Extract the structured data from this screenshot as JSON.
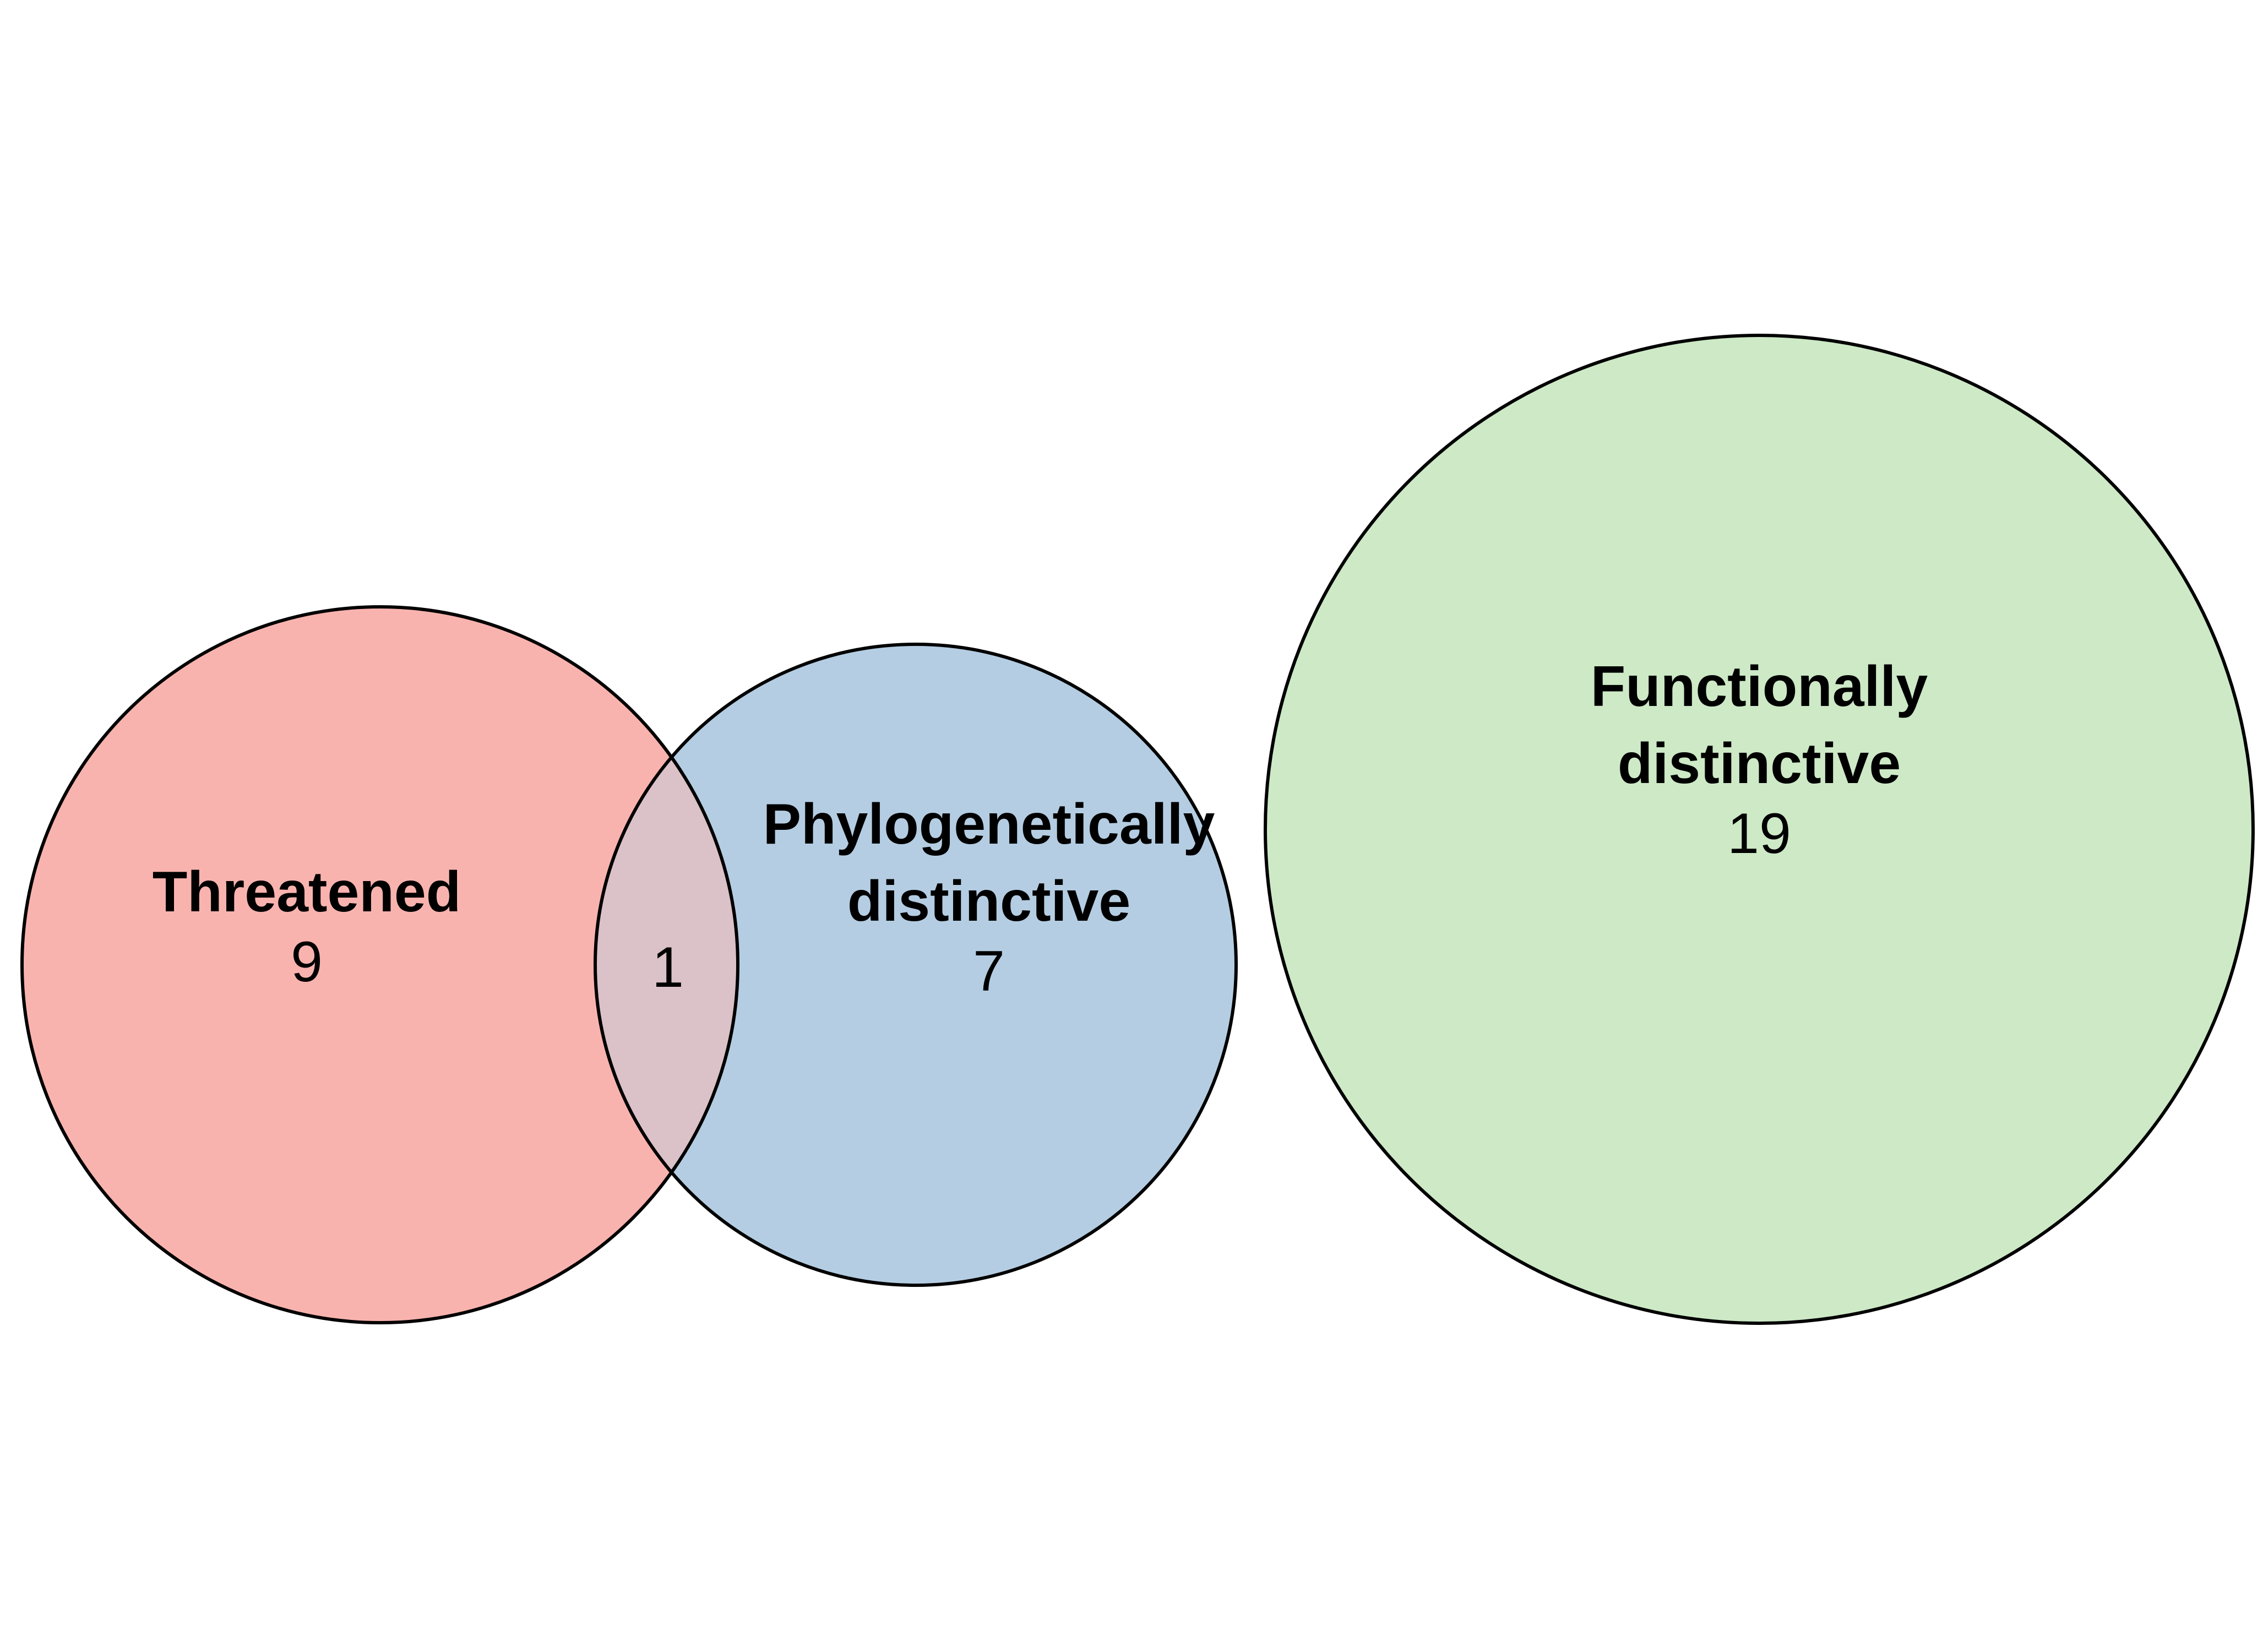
{
  "diagram": {
    "type": "venn",
    "colors": {
      "threatened": "#f9b3ae",
      "phylogenetic": "#b4cde2",
      "functional": "#cde9c6",
      "overlap": "#dbc1c8",
      "outline": "#000000"
    },
    "sets": {
      "threatened": {
        "label": "Threatened",
        "count": "9"
      },
      "phylogenetic": {
        "label_line1": "Phylogenetically",
        "label_line2": "distinctive",
        "count": "7"
      },
      "functional": {
        "label_line1": "Functionally",
        "label_line2": "distinctive",
        "count": "19"
      }
    },
    "intersections": {
      "threatened_phylogenetic": {
        "count": "1"
      }
    }
  }
}
